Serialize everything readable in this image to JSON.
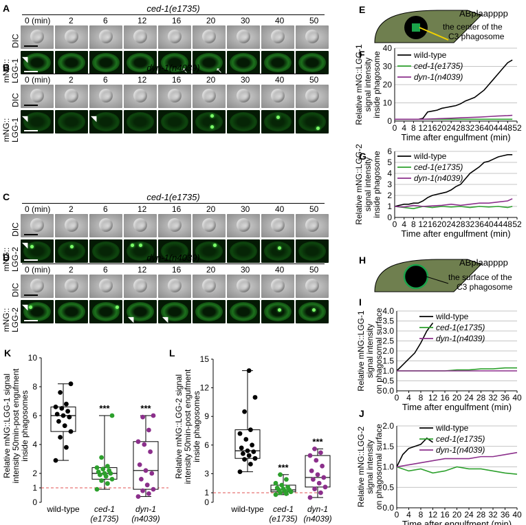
{
  "panels": {
    "A": {
      "letter": "A",
      "strain": "ced-1(e1735)",
      "row1": "DIC",
      "row2a": "mNG::",
      "row2b": "LGG-1"
    },
    "B": {
      "letter": "B",
      "strain": "dyn-1(n4039)",
      "row1": "DIC",
      "row2a": "mNG::",
      "row2b": "LGG-1"
    },
    "C": {
      "letter": "C",
      "strain": "ced-1(e1735)",
      "row1": "DIC",
      "row2a": "mNG::",
      "row2b": "LGG-2"
    },
    "D": {
      "letter": "D",
      "strain": "dyn-1(n4039)",
      "row1": "DIC",
      "row2a": "mNG::",
      "row2b": "LGG-2"
    }
  },
  "timepoints": [
    "0 (min)",
    "2",
    "6",
    "12",
    "16",
    "20",
    "30",
    "40",
    "50"
  ],
  "diagram_E": {
    "letter": "E",
    "cell": "ABplaapppp",
    "label1": "the center of the",
    "label2": "C3 phagosome"
  },
  "diagram_H": {
    "letter": "H",
    "cell": "ABplaapppp",
    "label1": "the surface of the",
    "label2": "C3 phagosome"
  },
  "colors": {
    "wildtype": "#000000",
    "ced1": "#2ca02c",
    "dyn1": "#8b2f8b",
    "grid": "#b0b0b0",
    "ref": "#e05050"
  },
  "chart_data": [
    {
      "id": "F",
      "type": "line",
      "letter": "F",
      "ylabel": [
        "Relative mNG::LGG-1",
        "signal intensity",
        "inside phagosome"
      ],
      "xlabel": "Time after engulfment (min)",
      "ylim": [
        0,
        40
      ],
      "yticks": [
        0,
        10,
        20,
        30,
        40
      ],
      "xticks": [
        "0",
        "4",
        "8",
        "12",
        "16",
        "20",
        "24",
        "28",
        "32",
        "36",
        "40",
        "44",
        "48",
        "52"
      ],
      "xlim": [
        0,
        52
      ],
      "series": [
        {
          "name": "wild-type",
          "color": "#000000",
          "x": [
            0,
            2,
            4,
            6,
            8,
            10,
            12,
            14,
            16,
            18,
            20,
            22,
            24,
            26,
            28,
            30,
            32,
            34,
            36,
            38,
            40,
            42,
            44,
            46,
            48,
            50
          ],
          "y": [
            1,
            1,
            1,
            1,
            1,
            1,
            1.5,
            5,
            5.5,
            6,
            7,
            7.5,
            8,
            8.5,
            9.5,
            11,
            12,
            13,
            15,
            17,
            20,
            23,
            26,
            29,
            32,
            33.5
          ]
        },
        {
          "name": "ced-1(e1735)",
          "color": "#2ca02c",
          "x": [
            0,
            4,
            8,
            12,
            16,
            20,
            24,
            28,
            32,
            36,
            40,
            44,
            48,
            50
          ],
          "y": [
            1,
            1,
            1,
            1,
            1,
            1,
            1,
            1,
            1,
            1,
            1,
            1,
            1,
            1
          ]
        },
        {
          "name": "dyn-1(n4039)",
          "color": "#8b2f8b",
          "x": [
            0,
            4,
            8,
            12,
            16,
            20,
            24,
            28,
            32,
            36,
            40,
            44,
            48,
            50
          ],
          "y": [
            1,
            1,
            1,
            1,
            1.2,
            1.4,
            1.6,
            1.8,
            2,
            2.2,
            2.5,
            2.8,
            3,
            3.2
          ]
        }
      ]
    },
    {
      "id": "G",
      "type": "line",
      "letter": "G",
      "ylabel": [
        "Relative mNG::LGG-2",
        "signal intensity",
        "inside phagosome"
      ],
      "xlabel": "Time after engulfment (min)",
      "ylim": [
        0,
        6
      ],
      "yticks": [
        0,
        1,
        2,
        3,
        4,
        5,
        6
      ],
      "xticks": [
        "0",
        "4",
        "8",
        "12",
        "16",
        "20",
        "24",
        "28",
        "32",
        "36",
        "40",
        "44",
        "48",
        "52"
      ],
      "xlim": [
        0,
        52
      ],
      "series": [
        {
          "name": "wild-type",
          "color": "#000000",
          "x": [
            0,
            2,
            4,
            6,
            8,
            10,
            12,
            14,
            16,
            18,
            20,
            22,
            24,
            26,
            28,
            30,
            32,
            34,
            36,
            38,
            40,
            42,
            44,
            46,
            48,
            50
          ],
          "y": [
            1,
            1.1,
            1.2,
            1.2,
            1.3,
            1.3,
            1.5,
            1.8,
            2,
            2.1,
            2.2,
            2.3,
            2.5,
            2.8,
            3,
            3.5,
            4,
            4.3,
            4.6,
            5,
            5.1,
            5.3,
            5.5,
            5.6,
            5.7,
            5.7
          ]
        },
        {
          "name": "ced-1(e1735)",
          "color": "#2ca02c",
          "x": [
            0,
            4,
            8,
            12,
            16,
            20,
            24,
            28,
            32,
            36,
            40,
            44,
            48,
            50
          ],
          "y": [
            1,
            0.9,
            0.8,
            1,
            0.9,
            1,
            0.95,
            1,
            0.9,
            1,
            0.95,
            1,
            0.9,
            1
          ]
        },
        {
          "name": "dyn-1(n4039)",
          "color": "#8b2f8b",
          "x": [
            0,
            4,
            8,
            12,
            16,
            20,
            24,
            28,
            32,
            36,
            40,
            44,
            48,
            50
          ],
          "y": [
            1,
            0.95,
            1.1,
            1,
            1.05,
            1.1,
            1.2,
            1.1,
            1.2,
            1.3,
            1.3,
            1.4,
            1.5,
            1.7
          ]
        }
      ]
    },
    {
      "id": "I",
      "type": "line",
      "letter": "I",
      "ylabel": [
        "Relative mNG::LGG-1",
        "signal intensity",
        "on phagosomal surface"
      ],
      "xlabel": "Time after engulfment (min)",
      "ylim": [
        0,
        4
      ],
      "yticks": [
        "0.0",
        "0.5",
        "1.0",
        "1.5",
        "2.0",
        "2.5",
        "3.0",
        "3.5",
        "4.0"
      ],
      "xticks": [
        "0",
        "4",
        "8",
        "12",
        "16",
        "20",
        "24",
        "28",
        "32",
        "36",
        "40"
      ],
      "xlim": [
        0,
        40
      ],
      "series": [
        {
          "name": "wild-type",
          "color": "#000000",
          "x": [
            0,
            2,
            4,
            6,
            8,
            10,
            12
          ],
          "y": [
            1,
            1.3,
            1.6,
            1.9,
            2.4,
            3.0,
            3.4
          ]
        },
        {
          "name": "ced-1(e1735)",
          "color": "#2ca02c",
          "x": [
            0,
            4,
            8,
            12,
            16,
            20,
            24,
            28,
            32,
            36,
            40
          ],
          "y": [
            1,
            1,
            1,
            1,
            1,
            1.05,
            1.05,
            1.1,
            1.1,
            1.15,
            1.15
          ]
        },
        {
          "name": "dyn-1(n4039)",
          "color": "#8b2f8b",
          "x": [
            0,
            4,
            8,
            12,
            16,
            20,
            24,
            28,
            32,
            36,
            40
          ],
          "y": [
            1,
            1,
            1,
            1,
            1,
            1,
            1,
            1,
            1,
            1,
            1
          ]
        }
      ]
    },
    {
      "id": "J",
      "type": "line",
      "letter": "J",
      "ylabel": [
        "Relative mNG::LGG-2",
        "signal intensity",
        "on phagosomal surface"
      ],
      "xlabel": "Time after engulfment (min)",
      "ylim": [
        0,
        2
      ],
      "yticks": [
        "0.0",
        "0.5",
        "1.0",
        "1.5",
        "2.0"
      ],
      "xticks": [
        "0",
        "4",
        "8",
        "12",
        "16",
        "20",
        "24",
        "28",
        "32",
        "36",
        "40"
      ],
      "xlim": [
        0,
        40
      ],
      "series": [
        {
          "name": "wild-type",
          "color": "#000000",
          "x": [
            0,
            2,
            4,
            6,
            8,
            10,
            12
          ],
          "y": [
            1,
            1.3,
            1.45,
            1.5,
            1.55,
            1.7,
            1.6
          ]
        },
        {
          "name": "ced-1(e1735)",
          "color": "#2ca02c",
          "x": [
            0,
            4,
            8,
            12,
            16,
            20,
            24,
            28,
            32,
            36,
            40
          ],
          "y": [
            1,
            0.9,
            0.95,
            0.85,
            0.9,
            1,
            0.95,
            0.95,
            0.9,
            0.85,
            0.82
          ]
        },
        {
          "name": "dyn-1(n4039)",
          "color": "#8b2f8b",
          "x": [
            0,
            4,
            8,
            12,
            16,
            20,
            24,
            28,
            32,
            36,
            40
          ],
          "y": [
            1,
            1.05,
            1.1,
            1.15,
            1.2,
            1.2,
            1.2,
            1.25,
            1.25,
            1.3,
            1.35
          ]
        }
      ]
    },
    {
      "id": "K",
      "type": "box",
      "letter": "K",
      "ylabel": [
        "Relative mNG::LGG-1 signal",
        "intensity 50min-post engufment",
        "inside phagosomes"
      ],
      "ylim": [
        0,
        10
      ],
      "yticks": [
        0,
        1,
        2,
        4,
        6,
        8,
        10
      ],
      "ref": 1,
      "groups": [
        {
          "name": [
            "wild-type"
          ],
          "color": "#000000",
          "min": 2.9,
          "q1": 4.9,
          "median": 6.0,
          "q3": 6.6,
          "max": 8.2,
          "sig": "",
          "points": [
            2.9,
            3.8,
            4.5,
            4.9,
            5.3,
            5.6,
            5.9,
            6.0,
            6.1,
            6.3,
            6.5,
            6.6,
            6.8,
            7.6,
            8.2
          ]
        },
        {
          "name": [
            "ced-1",
            "(e1735)"
          ],
          "color": "#2ca02c",
          "min": 0.9,
          "q1": 1.6,
          "median": 2.0,
          "q3": 2.4,
          "max": 6.0,
          "sig": "***",
          "points": [
            0.9,
            1.3,
            1.5,
            1.6,
            1.8,
            1.9,
            2.0,
            2.0,
            2.1,
            2.2,
            2.3,
            2.4,
            2.5,
            3.1,
            6.0
          ]
        },
        {
          "name": [
            "dyn-1",
            "(n4039)"
          ],
          "color": "#8b2f8b",
          "min": 0.4,
          "q1": 0.9,
          "median": 2.2,
          "q3": 4.2,
          "max": 6.0,
          "sig": "***",
          "points": [
            0.4,
            0.6,
            0.8,
            0.9,
            1.2,
            1.6,
            2.0,
            2.2,
            2.6,
            3.5,
            4.0,
            4.2,
            5.0,
            5.9,
            6.0
          ]
        }
      ]
    },
    {
      "id": "L",
      "type": "box",
      "letter": "L",
      "ylabel": [
        "Relative mNG::LGG-2 signal",
        "intensity 50min-post engufment",
        "inside phagosomes"
      ],
      "ylim": [
        0,
        15
      ],
      "yticks": [
        0,
        1,
        3,
        6,
        9,
        12,
        15
      ],
      "ref": 1,
      "groups": [
        {
          "name": [
            "wild-type"
          ],
          "color": "#000000",
          "min": 3.2,
          "q1": 4.6,
          "median": 5.4,
          "q3": 7.6,
          "max": 13.8,
          "sig": "",
          "points": [
            3.2,
            4.0,
            4.5,
            4.6,
            4.9,
            5.1,
            5.3,
            5.4,
            5.7,
            6.0,
            6.6,
            7.2,
            7.6,
            9.5,
            11.0,
            13.8
          ]
        },
        {
          "name": [
            "ced-1",
            "(e1735)"
          ],
          "color": "#2ca02c",
          "min": 0.8,
          "q1": 1.1,
          "median": 1.3,
          "q3": 1.8,
          "max": 2.9,
          "sig": "***",
          "points": [
            0.8,
            0.9,
            1.0,
            1.1,
            1.2,
            1.3,
            1.3,
            1.4,
            1.5,
            1.6,
            1.8,
            2.0,
            2.4,
            2.9
          ]
        },
        {
          "name": [
            "dyn-1",
            "(n4039)"
          ],
          "color": "#8b2f8b",
          "min": 0.5,
          "q1": 1.6,
          "median": 2.6,
          "q3": 4.9,
          "max": 5.6,
          "sig": "***",
          "points": [
            0.5,
            1.0,
            1.4,
            1.6,
            2.0,
            2.4,
            2.6,
            2.9,
            3.3,
            3.8,
            4.4,
            4.9,
            5.2,
            5.6
          ]
        }
      ]
    }
  ]
}
